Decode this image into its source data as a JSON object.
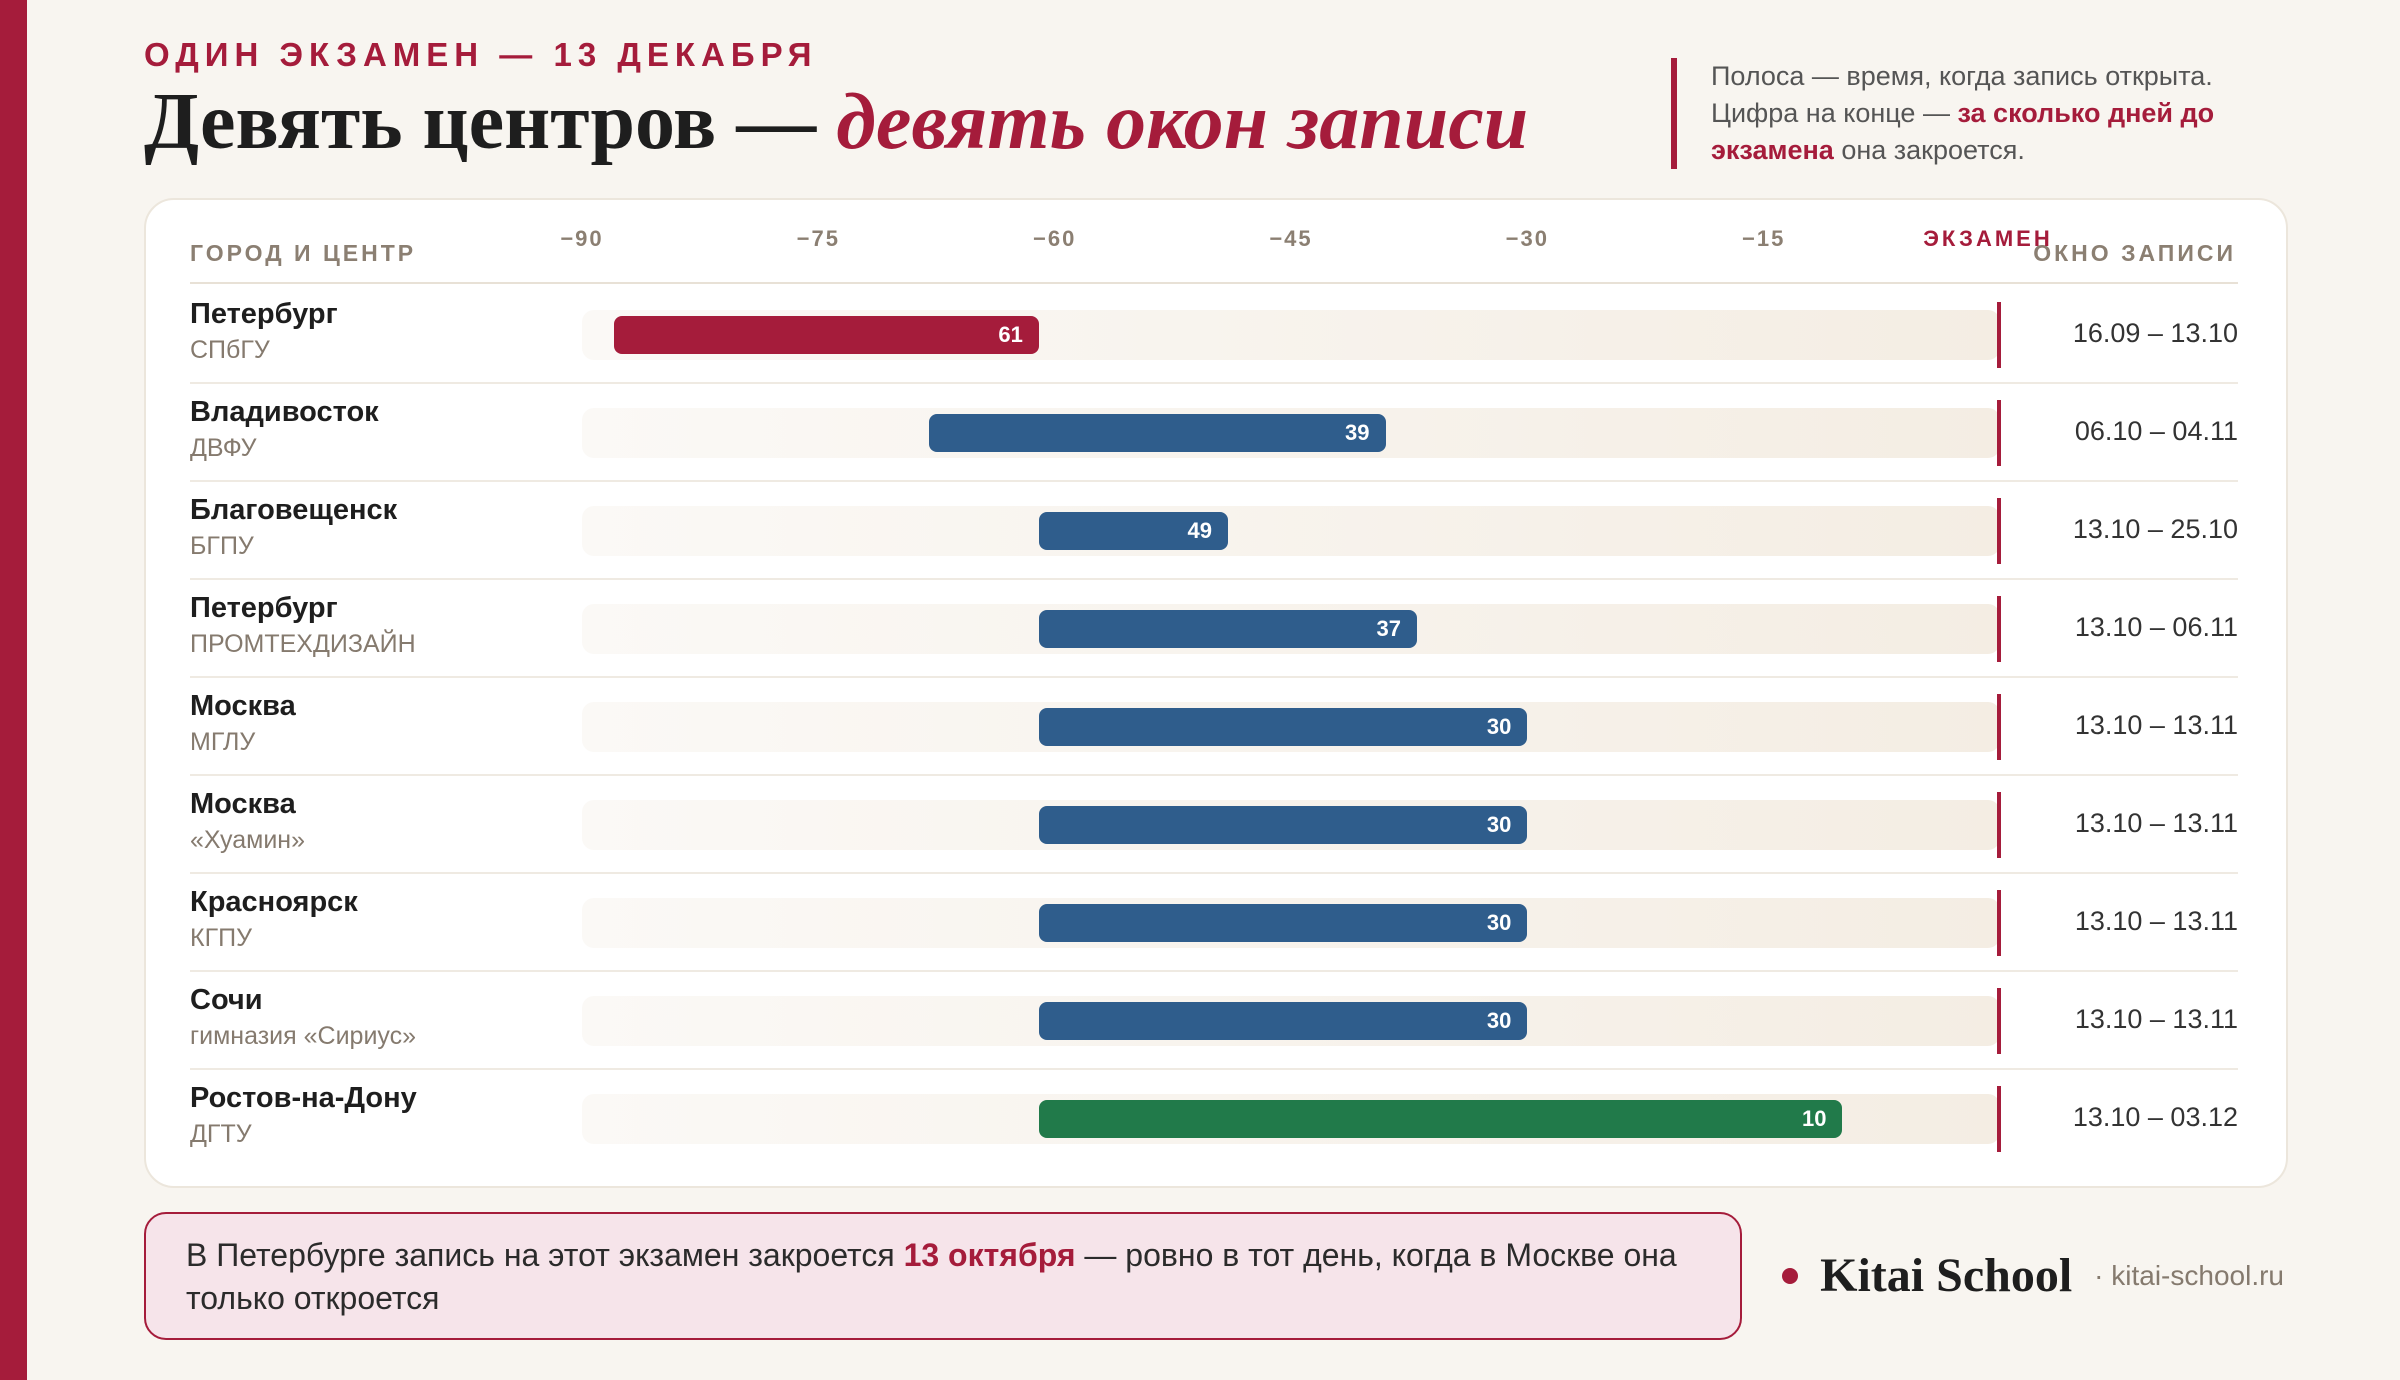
{
  "header": {
    "kicker": "ОДИН ЭКЗАМЕН — 13 ДЕКАБРЯ",
    "title_plain": "Девять центров — ",
    "title_accent": "девять окон записи"
  },
  "note": {
    "line1": "Полоса — время, когда запись открыта.",
    "line2_plain": "Цифра на конце — ",
    "line2_em": "за сколько дней до экзамена",
    "line2_tail": " она закроется."
  },
  "table": {
    "col_city": "ГОРОД И ЦЕНТР",
    "col_window": "ОКНО ЗАПИСИ",
    "exam_label": "ЭКЗАМЕН"
  },
  "chart_data": {
    "type": "bar",
    "orientation": "horizontal-range",
    "x_unit": "days relative to exam",
    "xlim": [
      -90,
      0
    ],
    "ticks": [
      {
        "value": -90,
        "label": "−90"
      },
      {
        "value": -75,
        "label": "−75"
      },
      {
        "value": -60,
        "label": "−60"
      },
      {
        "value": -45,
        "label": "−45"
      },
      {
        "value": -30,
        "label": "−30"
      },
      {
        "value": -15,
        "label": "−15"
      }
    ],
    "rows": [
      {
        "city": "Петербург",
        "center": "СПбГУ",
        "start": -88,
        "end": -61,
        "label": "61",
        "dates": "16.09 – 13.10",
        "color": "#a51c3b"
      },
      {
        "city": "Владивосток",
        "center": "ДВФУ",
        "start": -68,
        "end": -39,
        "label": "39",
        "dates": "06.10 – 04.11",
        "color": "#2f5d8c"
      },
      {
        "city": "Благовещенск",
        "center": "БГПУ",
        "start": -61,
        "end": -49,
        "label": "49",
        "dates": "13.10 – 25.10",
        "color": "#2f5d8c"
      },
      {
        "city": "Петербург",
        "center": "ПРОМТЕХДИЗАЙН",
        "start": -61,
        "end": -37,
        "label": "37",
        "dates": "13.10 – 06.11",
        "color": "#2f5d8c"
      },
      {
        "city": "Москва",
        "center": "МГЛУ",
        "start": -61,
        "end": -30,
        "label": "30",
        "dates": "13.10 – 13.11",
        "color": "#2f5d8c"
      },
      {
        "city": "Москва",
        "center": "«Хуамин»",
        "start": -61,
        "end": -30,
        "label": "30",
        "dates": "13.10 – 13.11",
        "color": "#2f5d8c"
      },
      {
        "city": "Красноярск",
        "center": "КГПУ",
        "start": -61,
        "end": -30,
        "label": "30",
        "dates": "13.10 – 13.11",
        "color": "#2f5d8c"
      },
      {
        "city": "Сочи",
        "center": "гимназия «Сириус»",
        "start": -61,
        "end": -30,
        "label": "30",
        "dates": "13.10 – 13.11",
        "color": "#2f5d8c"
      },
      {
        "city": "Ростов-на-Дону",
        "center": "ДГТУ",
        "start": -61,
        "end": -10,
        "label": "10",
        "dates": "13.10 – 03.12",
        "color": "#217a4a"
      }
    ]
  },
  "callout": {
    "part1": "В Петербурге запись на этот экзамен закроется ",
    "em": "13 октября",
    "part2": " — ровно в тот день, когда в Москве она только откроется"
  },
  "brand": {
    "name": "Kitai School",
    "site": "· kitai-school.ru"
  },
  "colors": {
    "accent": "#a51c3b",
    "bar_default": "#2f5d8c",
    "bar_longest": "#217a4a"
  }
}
